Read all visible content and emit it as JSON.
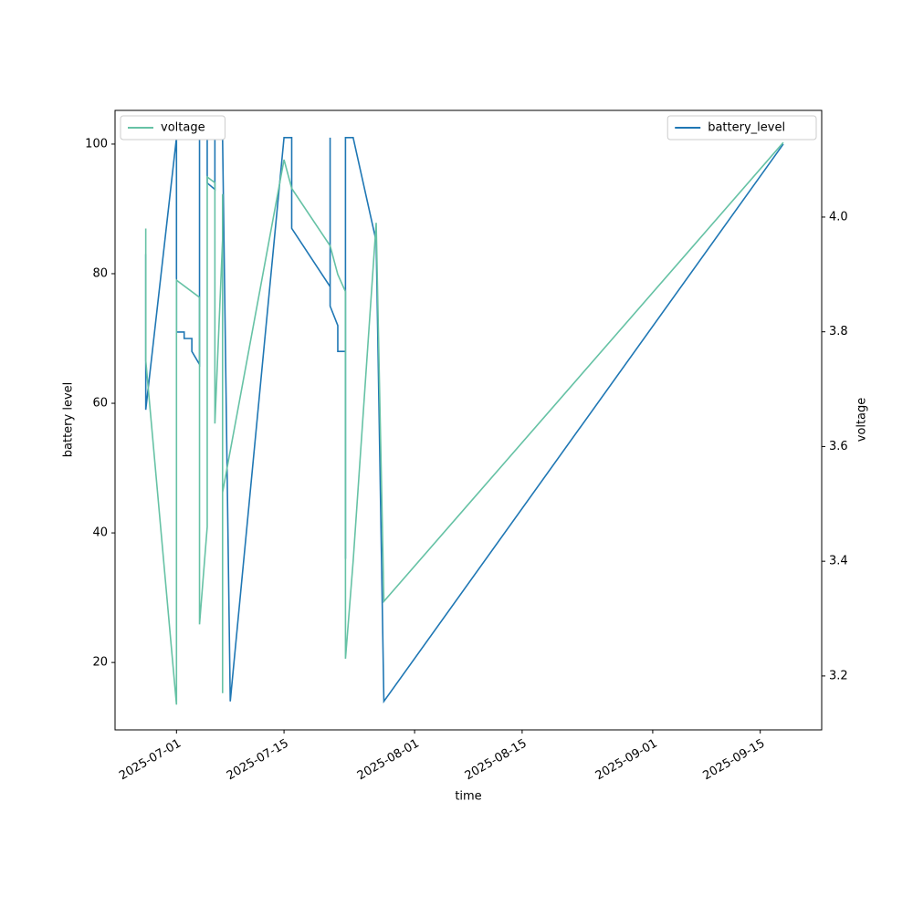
{
  "chart_data": {
    "type": "line",
    "xlabel": "time",
    "ylabel": "battery level",
    "y2label": "voltage",
    "xlim": [
      "2025-06-23",
      "2025-09-23"
    ],
    "xticks": [
      "2025-07-01",
      "2025-07-15",
      "2025-08-01",
      "2025-08-15",
      "2025-09-01",
      "2025-09-15"
    ],
    "ylim": [
      9.6,
      105.2
    ],
    "yticks": [
      20,
      40,
      60,
      80,
      100
    ],
    "y2lim": [
      3.106,
      4.186
    ],
    "y2ticks": [
      3.2,
      3.4,
      3.6,
      3.8,
      {
        "value": 4,
        "label": "4.0"
      }
    ],
    "series": [
      {
        "name": "battery_level",
        "color": "#1f77b4",
        "axis": "y",
        "legend": "upper right",
        "x": [
          "2025-06-27",
          "2025-06-27",
          "2025-06-27",
          "2025-07-01",
          "2025-07-01",
          "2025-07-01",
          "2025-07-02",
          "2025-07-02",
          "2025-07-03",
          "2025-07-03",
          "2025-07-04",
          "2025-07-04",
          "2025-07-04",
          "2025-07-05",
          "2025-07-05",
          "2025-07-06",
          "2025-07-06",
          "2025-07-07",
          "2025-07-08",
          "2025-07-15",
          "2025-07-16",
          "2025-07-16",
          "2025-07-21",
          "2025-07-21",
          "2025-07-21",
          "2025-07-21",
          "2025-07-22",
          "2025-07-22",
          "2025-07-23",
          "2025-07-23",
          "2025-07-23",
          "2025-07-24",
          "2025-07-27",
          "2025-07-28",
          "2025-09-18"
        ],
        "values": [
          83,
          82,
          59,
          101,
          101,
          71,
          71,
          70,
          70,
          68,
          66,
          101,
          101,
          101,
          94,
          93,
          101,
          101,
          14,
          101,
          101,
          87,
          78,
          101,
          101,
          75,
          72,
          68,
          68,
          36,
          101,
          101,
          85,
          14,
          100
        ]
      },
      {
        "name": "voltage",
        "color": "#66c2a5",
        "axis": "y2",
        "legend": "upper left",
        "x": [
          "2025-06-27",
          "2025-06-27",
          "2025-06-27",
          "2025-07-01",
          "2025-07-01",
          "2025-07-04",
          "2025-07-04",
          "2025-07-05",
          "2025-07-05",
          "2025-07-06",
          "2025-07-06",
          "2025-07-06",
          "2025-07-07",
          "2025-07-07",
          "2025-07-07",
          "2025-07-07",
          "2025-07-15",
          "2025-07-16",
          "2025-07-21",
          "2025-07-22",
          "2025-07-23",
          "2025-07-23",
          "2025-07-23",
          "2025-07-24",
          "2025-07-27",
          "2025-07-28",
          "2025-09-18"
        ],
        "values": [
          3.98,
          3.97,
          3.75,
          3.15,
          3.89,
          3.86,
          3.29,
          3.46,
          4.07,
          4.06,
          3.91,
          3.64,
          3.96,
          3.17,
          4.04,
          3.52,
          4.1,
          4.05,
          3.95,
          3.9,
          3.87,
          3.75,
          3.23,
          3.4,
          3.99,
          3.33,
          4.13
        ]
      }
    ]
  }
}
